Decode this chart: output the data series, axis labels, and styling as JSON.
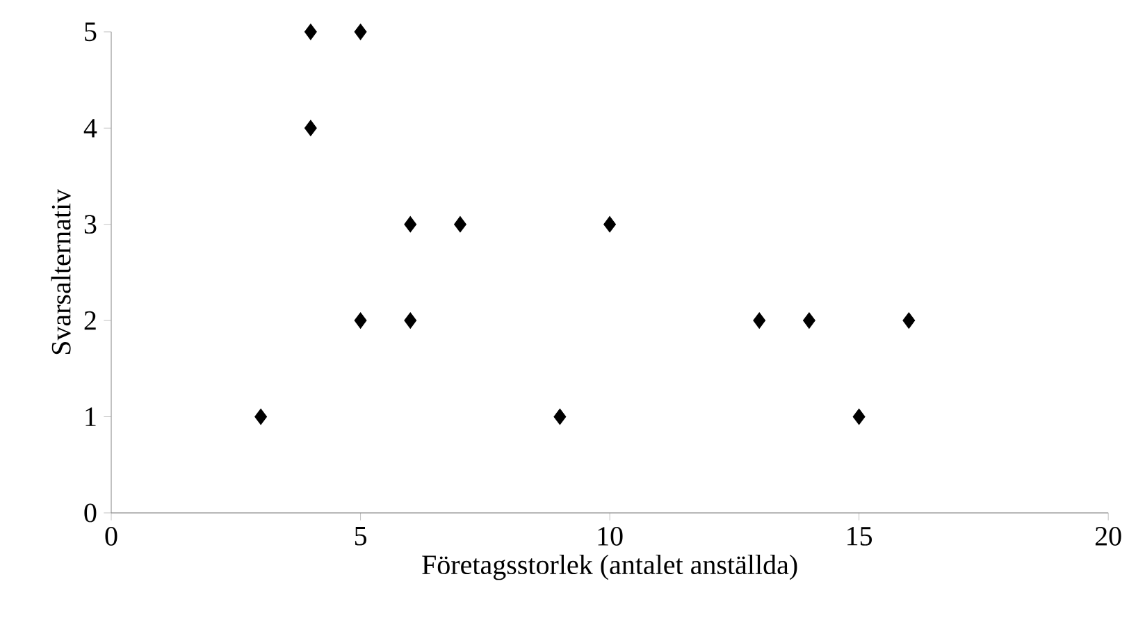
{
  "chart_data": {
    "type": "scatter",
    "xlabel": "Företagsstorlek (antalet anställda)",
    "ylabel": "Svarsalternativ",
    "xlim": [
      0,
      20
    ],
    "ylim": [
      0,
      5
    ],
    "xticks": [
      0,
      5,
      10,
      15,
      20
    ],
    "yticks": [
      0,
      1,
      2,
      3,
      4,
      5
    ],
    "marker": "diamond",
    "series": [
      {
        "color": "#000000",
        "x": [
          3,
          4,
          5,
          4,
          6,
          7,
          10,
          5,
          6,
          13,
          14,
          16,
          9,
          15
        ],
        "values": [
          1,
          5,
          5,
          4,
          3,
          3,
          3,
          2,
          2,
          2,
          2,
          2,
          1,
          1
        ]
      }
    ]
  }
}
